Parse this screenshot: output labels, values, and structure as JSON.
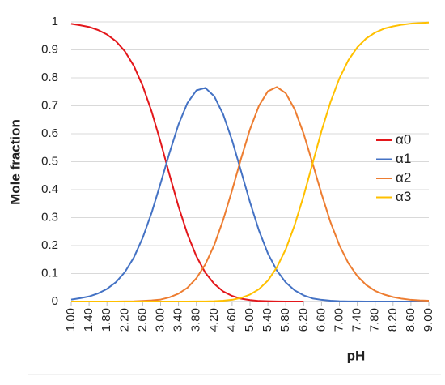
{
  "chart_data": {
    "type": "line",
    "xlabel": "pH",
    "ylabel": "Mole fraction",
    "x": [
      1.0,
      1.2,
      1.4,
      1.6,
      1.8,
      2.0,
      2.2,
      2.4,
      2.6,
      2.8,
      3.0,
      3.2,
      3.4,
      3.6,
      3.8,
      4.0,
      4.2,
      4.4,
      4.6,
      4.8,
      5.0,
      5.2,
      5.4,
      5.6,
      5.8,
      6.0,
      6.2,
      6.4,
      6.6,
      6.8,
      7.0,
      7.2,
      7.4,
      7.6,
      7.8,
      8.0,
      8.2,
      8.4,
      8.6,
      8.8,
      9.0
    ],
    "xlim": [
      1.0,
      9.0
    ],
    "xticks": [
      {
        "value": 1.0,
        "label": "1.00"
      },
      {
        "value": 1.4,
        "label": "1.40"
      },
      {
        "value": 1.8,
        "label": "1.80"
      },
      {
        "value": 2.2,
        "label": "2.20"
      },
      {
        "value": 2.6,
        "label": "2.60"
      },
      {
        "value": 3.0,
        "label": "3.00"
      },
      {
        "value": 3.4,
        "label": "3.40"
      },
      {
        "value": 3.8,
        "label": "3.80"
      },
      {
        "value": 4.2,
        "label": "4.20"
      },
      {
        "value": 4.6,
        "label": "4.60"
      },
      {
        "value": 5.0,
        "label": "5.00"
      },
      {
        "value": 5.4,
        "label": "5.40"
      },
      {
        "value": 5.8,
        "label": "5.80"
      },
      {
        "value": 6.2,
        "label": "6.20"
      },
      {
        "value": 6.6,
        "label": "6.60"
      },
      {
        "value": 7.0,
        "label": "7.00"
      },
      {
        "value": 7.4,
        "label": "7.40"
      },
      {
        "value": 7.8,
        "label": "7.80"
      },
      {
        "value": 8.2,
        "label": "8.20"
      },
      {
        "value": 8.6,
        "label": "8.60"
      },
      {
        "value": 9.0,
        "label": "9.00"
      }
    ],
    "ylim": [
      0,
      1
    ],
    "yticks": [
      0,
      0.1,
      0.2,
      0.3,
      0.4,
      0.5,
      0.6,
      0.7,
      0.8,
      0.9,
      1
    ],
    "grid": true,
    "legend": "right",
    "series": [
      {
        "name": "α0",
        "color": "#e3171b",
        "values": [
          0.993,
          0.988,
          0.982,
          0.971,
          0.955,
          0.931,
          0.895,
          0.843,
          0.771,
          0.679,
          0.57,
          0.453,
          0.34,
          0.241,
          0.162,
          0.103,
          0.063,
          0.036,
          0.02,
          0.01,
          0.005,
          0.002,
          0.001,
          0.0004,
          0.0001,
          0.0001,
          0,
          null,
          null,
          null,
          null,
          null,
          null,
          null,
          null,
          null,
          null,
          null,
          null,
          null,
          null
        ]
      },
      {
        "name": "α1",
        "color": "#4472c4",
        "values": [
          0.007,
          0.012,
          0.018,
          0.029,
          0.045,
          0.069,
          0.105,
          0.157,
          0.228,
          0.318,
          0.423,
          0.532,
          0.633,
          0.71,
          0.755,
          0.764,
          0.734,
          0.669,
          0.576,
          0.466,
          0.355,
          0.254,
          0.172,
          0.111,
          0.068,
          0.04,
          0.022,
          0.011,
          0.006,
          0.003,
          0.001,
          0.0005,
          0.0002,
          0.0001,
          0,
          0,
          0,
          0,
          0,
          0,
          0
        ]
      },
      {
        "name": "α2",
        "color": "#ed7d31",
        "values": [
          0,
          0,
          0,
          0,
          0,
          0.0001,
          0.0003,
          0.0007,
          0.002,
          0.004,
          0.007,
          0.015,
          0.028,
          0.049,
          0.083,
          0.133,
          0.202,
          0.292,
          0.398,
          0.511,
          0.616,
          0.7,
          0.752,
          0.767,
          0.745,
          0.687,
          0.6,
          0.494,
          0.385,
          0.284,
          0.201,
          0.137,
          0.091,
          0.059,
          0.038,
          0.025,
          0.016,
          0.01,
          0.006,
          0.004,
          0.003
        ]
      },
      {
        "name": "α3",
        "color": "#ffc000",
        "values": [
          0,
          0,
          0,
          0,
          0,
          0,
          0,
          0,
          0,
          0,
          0,
          0,
          0,
          0.0001,
          0.0002,
          0.0005,
          0.001,
          0.003,
          0.006,
          0.013,
          0.025,
          0.044,
          0.075,
          0.122,
          0.187,
          0.274,
          0.378,
          0.494,
          0.61,
          0.713,
          0.798,
          0.863,
          0.909,
          0.941,
          0.962,
          0.976,
          0.984,
          0.99,
          0.994,
          0.996,
          0.998
        ]
      }
    ]
  }
}
